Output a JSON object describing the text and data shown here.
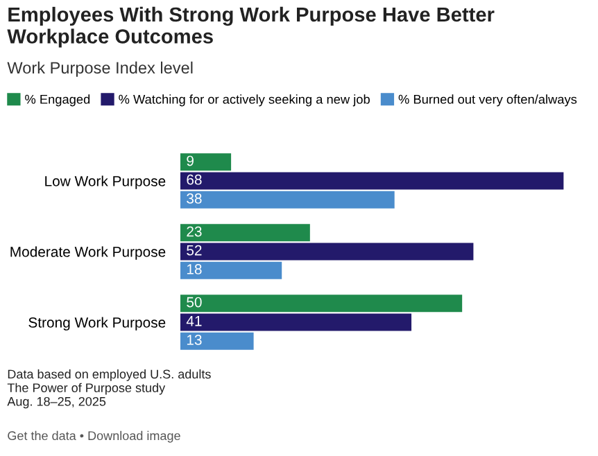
{
  "chart_data": {
    "type": "bar",
    "orientation": "horizontal",
    "title": "Employees With Strong Work Purpose Have Better Workplace Outcomes",
    "subtitle": "Work Purpose Index level",
    "categories": [
      "Low Work Purpose",
      "Moderate Work Purpose",
      "Strong Work Purpose"
    ],
    "series": [
      {
        "name": "% Engaged",
        "color": "#1f8a4c",
        "values": [
          9,
          23,
          50
        ]
      },
      {
        "name": "% Watching for or actively seeking a new job",
        "color": "#231a6b",
        "values": [
          68,
          52,
          41
        ]
      },
      {
        "name": "% Burned out very often/always",
        "color": "#4a8ccc",
        "values": [
          38,
          18,
          13
        ]
      }
    ],
    "data_labels": true,
    "legend": "top left",
    "grid": false,
    "tick_labels": "y",
    "annotations": [
      "Data based on employed U.S. adults",
      "The Power of Purpose study",
      "Aug. 18–25, 2025",
      "Get the data • Download image"
    ]
  }
}
